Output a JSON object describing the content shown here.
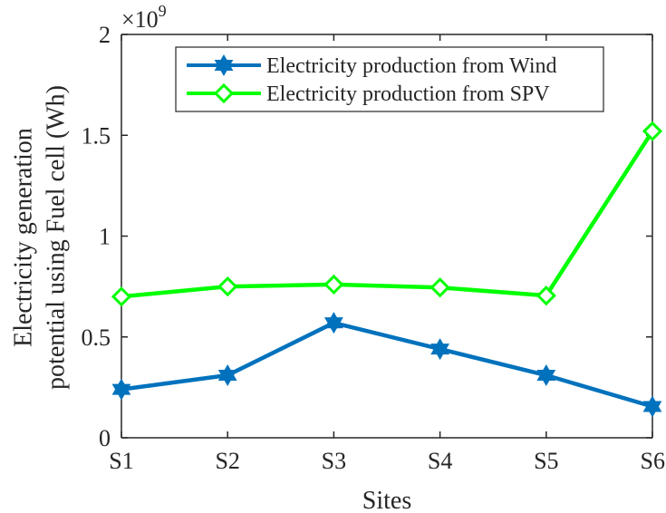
{
  "chart_data": {
    "type": "line",
    "title": "",
    "xlabel": "Sites",
    "ylabel_lines": [
      "Electricity generation",
      "potential using Fuel cell (Wh)"
    ],
    "categories": [
      "S1",
      "S2",
      "S3",
      "S4",
      "S5",
      "S6"
    ],
    "ylim": [
      0,
      2
    ],
    "yticks": [
      0,
      0.5,
      1,
      1.5,
      2
    ],
    "ytick_labels": [
      "0",
      "0.5",
      "1",
      "1.5",
      "2"
    ],
    "y_exponent_prefix": "×10",
    "y_exponent_power": "9",
    "y_scale_note": "values in units of 10^9 Wh",
    "grid": false,
    "legend_position": "top-right",
    "series": [
      {
        "name": "Electricity production from Wind",
        "color": "#0072BD",
        "marker": "hexagram",
        "values": [
          0.24,
          0.31,
          0.57,
          0.44,
          0.31,
          0.155
        ]
      },
      {
        "name": "Electricity production from SPV",
        "color": "#00FF00",
        "marker": "diamond",
        "values": [
          0.7,
          0.75,
          0.76,
          0.745,
          0.705,
          1.52
        ]
      }
    ]
  }
}
